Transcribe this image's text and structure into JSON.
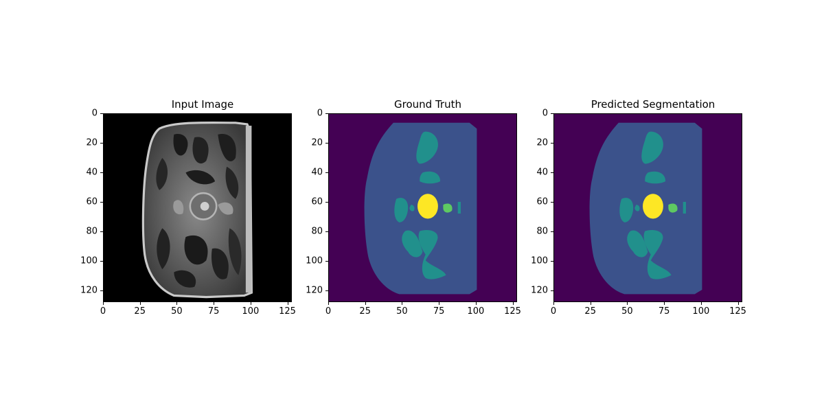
{
  "panels": [
    {
      "title": "Input Image",
      "kind": "mri",
      "colormap": "gray"
    },
    {
      "title": "Ground Truth",
      "kind": "segmentation",
      "colormap": "viridis"
    },
    {
      "title": "Predicted Segmentation",
      "kind": "segmentation",
      "colormap": "viridis"
    }
  ],
  "axes": {
    "x_ticks": [
      "0",
      "25",
      "50",
      "75",
      "100",
      "125"
    ],
    "y_ticks": [
      "0",
      "20",
      "40",
      "60",
      "80",
      "100",
      "120"
    ],
    "x_tick_values": [
      0,
      25,
      50,
      75,
      100,
      125
    ],
    "y_tick_values": [
      0,
      20,
      40,
      60,
      80,
      100,
      120
    ],
    "xlim": [
      0,
      128
    ],
    "ylim": [
      128,
      0
    ]
  },
  "colors": {
    "background": "#440154",
    "body": "#3b528b",
    "organ": "#21908c",
    "small_organ": "#5ec962",
    "bright": "#fde725"
  }
}
